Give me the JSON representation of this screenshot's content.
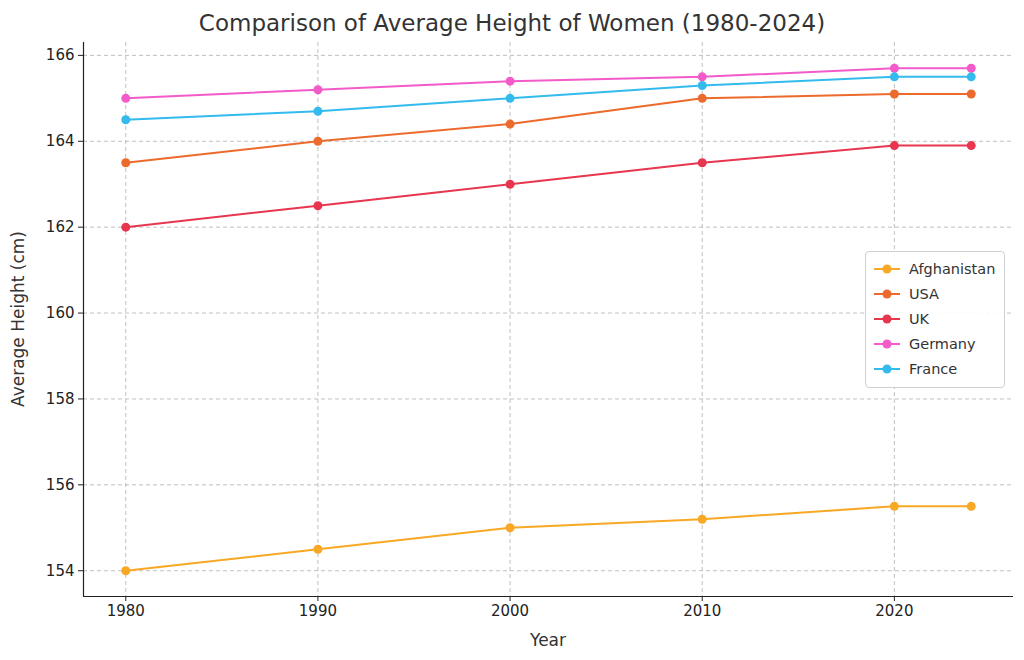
{
  "chart_data": {
    "type": "line",
    "title": "Comparison of Average Height of Women (1980-2024)",
    "x_label": "Year",
    "y_label": "Average Height (cm)",
    "x": [
      1980,
      1990,
      2000,
      2010,
      2020,
      2024
    ],
    "series": [
      {
        "name": "Afghanistan",
        "color": "#f9a825",
        "values": [
          154.0,
          154.5,
          155.0,
          155.2,
          155.5,
          155.5
        ]
      },
      {
        "name": "USA",
        "color": "#ec6a2c",
        "values": [
          163.5,
          164.0,
          164.4,
          165.0,
          165.1,
          165.1
        ]
      },
      {
        "name": "UK",
        "color": "#e8364f",
        "values": [
          162.0,
          162.5,
          163.0,
          163.5,
          163.9,
          163.9
        ]
      },
      {
        "name": "Germany",
        "color": "#f25bc9",
        "values": [
          165.0,
          165.2,
          165.4,
          165.5,
          165.7,
          165.7
        ]
      },
      {
        "name": "France",
        "color": "#33bbee",
        "values": [
          164.5,
          164.7,
          165.0,
          165.3,
          165.5,
          165.5
        ]
      }
    ],
    "xlim": [
      1977.8,
      2026.2
    ],
    "xticks": [
      1980,
      1990,
      2000,
      2010,
      2020
    ],
    "ylim": [
      153.4,
      166.3
    ],
    "yticks": [
      154,
      156,
      158,
      160,
      162,
      164,
      166
    ],
    "grid": true,
    "legend": "right",
    "marker": "o"
  }
}
